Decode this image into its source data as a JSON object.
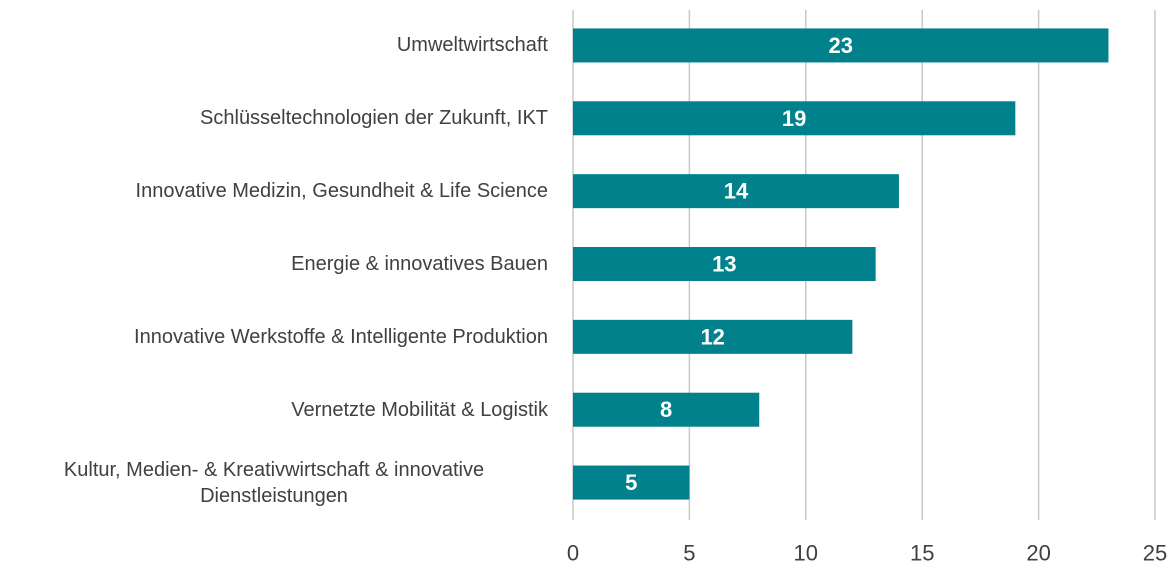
{
  "chart_data": {
    "type": "bar",
    "orientation": "horizontal",
    "categories": [
      "Umweltwirtschaft",
      "Schlüsseltechnologien der Zukunft, IKT",
      "Innovative Medizin, Gesundheit & Life Science",
      "Energie & innovatives Bauen",
      "Innovative Werkstoffe & Intelligente Produktion",
      "Vernetzte Mobilität & Logistik",
      "Kultur, Medien- & Kreativwirtschaft & innovative Dienstleistungen"
    ],
    "values": [
      23,
      19,
      14,
      13,
      12,
      8,
      5
    ],
    "color": "#00818b",
    "xlim": [
      0,
      25
    ],
    "xticks": [
      0,
      5,
      10,
      15,
      20,
      25
    ],
    "grid": true
  }
}
